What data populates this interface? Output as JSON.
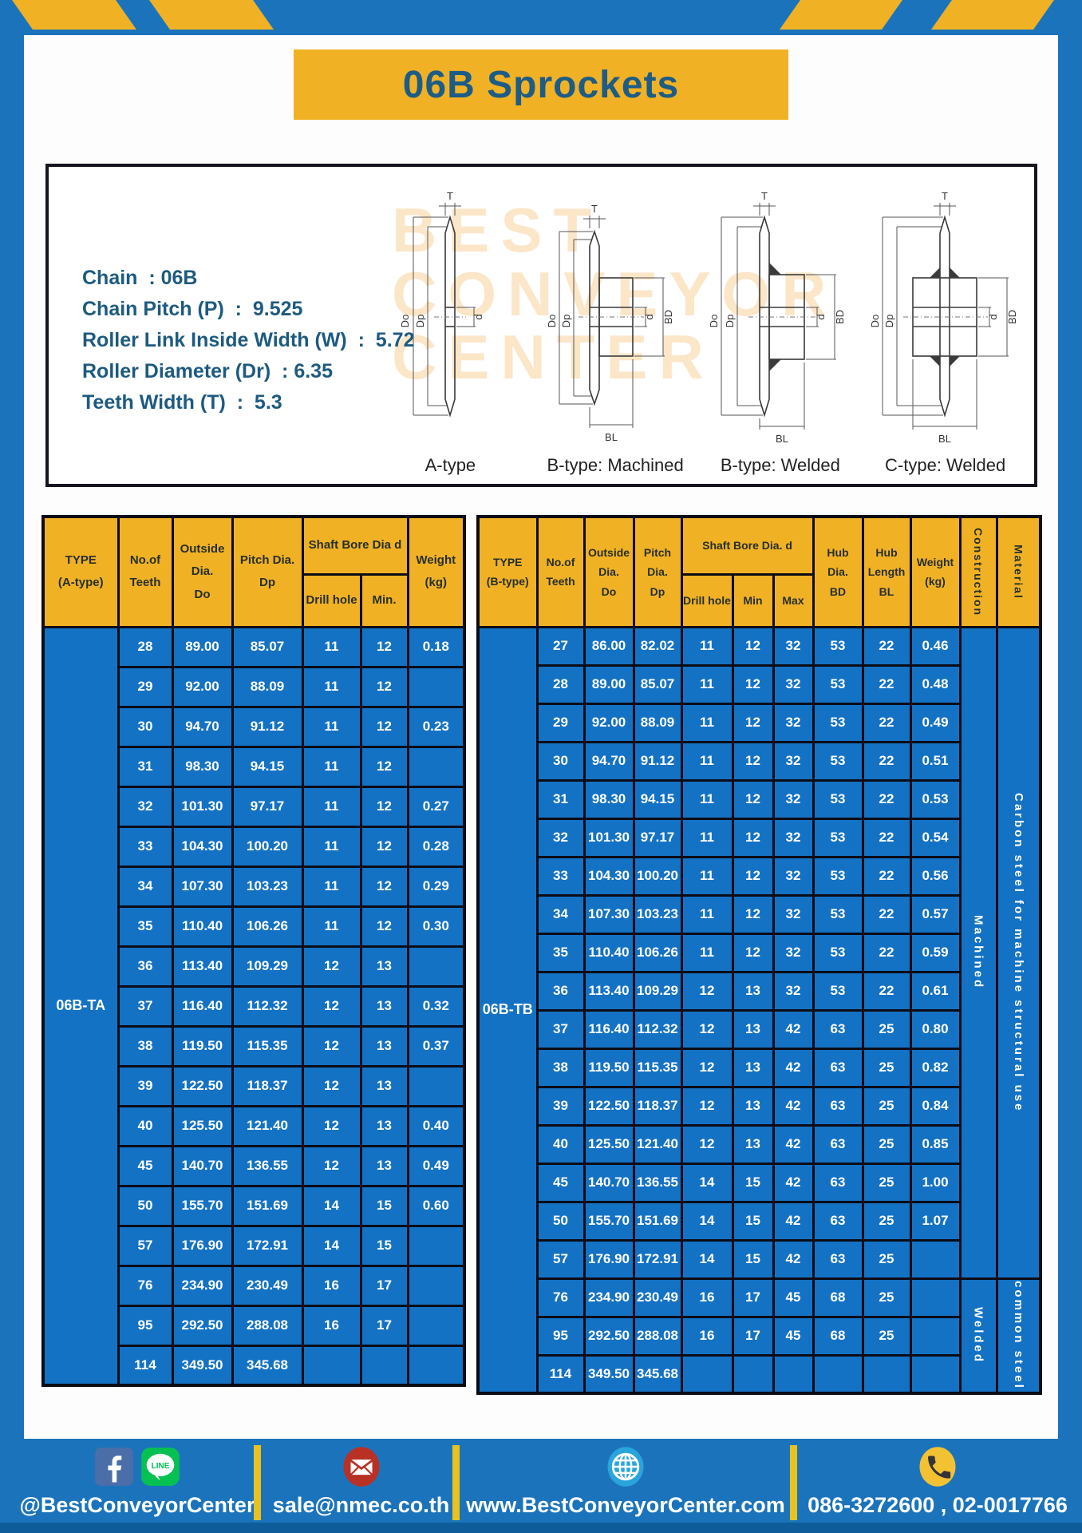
{
  "page": {
    "title": "06B Sprockets"
  },
  "colors": {
    "frame_blue": "#1b74bb",
    "cell_blue": "#1472c4",
    "accent_yellow": "#f0b125",
    "title_text": "#1d5c86",
    "table_border": "#0c0c16"
  },
  "specs": {
    "lines": [
      "Chain  : 06B",
      "Chain Pitch (P)  :  9.525",
      "Roller Link Inside Width (W)  :  5.72",
      "Roller Diameter (Dr)  : 6.35",
      "Teeth Width (T)  :  5.3"
    ]
  },
  "diagram": {
    "captions": [
      "A-type",
      "B-type: Machined",
      "B-type: Welded",
      "C-type: Welded"
    ],
    "dim_labels": {
      "t": "T",
      "do": "Do",
      "dp": "Dp",
      "d": "d",
      "bd": "BD",
      "bl": "BL"
    },
    "watermark": "BEST\nCONVEYOR\nCENTER"
  },
  "table_a": {
    "type_header": "TYPE\n(A-type)",
    "type_value": "06B-TA",
    "col_headers": {
      "teeth": "No.of\nTeeth",
      "outside": "Outside\nDia.\nDo",
      "pitch": "Pitch Dia.\nDp",
      "shaft_bore": "Shaft Bore Dia d",
      "drill": "Drill hole",
      "min": "Min.",
      "weight": "Weight\n(kg)"
    },
    "rows": [
      [
        "28",
        "89.00",
        "85.07",
        "11",
        "12",
        "0.18"
      ],
      [
        "29",
        "92.00",
        "88.09",
        "11",
        "12",
        ""
      ],
      [
        "30",
        "94.70",
        "91.12",
        "11",
        "12",
        "0.23"
      ],
      [
        "31",
        "98.30",
        "94.15",
        "11",
        "12",
        ""
      ],
      [
        "32",
        "101.30",
        "97.17",
        "11",
        "12",
        "0.27"
      ],
      [
        "33",
        "104.30",
        "100.20",
        "11",
        "12",
        "0.28"
      ],
      [
        "34",
        "107.30",
        "103.23",
        "11",
        "12",
        "0.29"
      ],
      [
        "35",
        "110.40",
        "106.26",
        "11",
        "12",
        "0.30"
      ],
      [
        "36",
        "113.40",
        "109.29",
        "12",
        "13",
        ""
      ],
      [
        "37",
        "116.40",
        "112.32",
        "12",
        "13",
        "0.32"
      ],
      [
        "38",
        "119.50",
        "115.35",
        "12",
        "13",
        "0.37"
      ],
      [
        "39",
        "122.50",
        "118.37",
        "12",
        "13",
        ""
      ],
      [
        "40",
        "125.50",
        "121.40",
        "12",
        "13",
        "0.40"
      ],
      [
        "45",
        "140.70",
        "136.55",
        "12",
        "13",
        "0.49"
      ],
      [
        "50",
        "155.70",
        "151.69",
        "14",
        "15",
        "0.60"
      ],
      [
        "57",
        "176.90",
        "172.91",
        "14",
        "15",
        ""
      ],
      [
        "76",
        "234.90",
        "230.49",
        "16",
        "17",
        ""
      ],
      [
        "95",
        "292.50",
        "288.08",
        "16",
        "17",
        ""
      ],
      [
        "114",
        "349.50",
        "345.68",
        "",
        "",
        ""
      ]
    ]
  },
  "table_b": {
    "type_header": "TYPE\n(B-type)",
    "type_value": "06B-TB",
    "col_headers": {
      "teeth": "No.of\nTeeth",
      "outside": "Outside\nDia.\nDo",
      "pitch": "Pitch\nDia.\nDp",
      "shaft_bore": "Shaft Bore Dia. d",
      "drill": "Drill hole",
      "min": "Min",
      "max": "Max",
      "hub_dia": "Hub\nDia.\nBD",
      "hub_len": "Hub\nLength\nBL",
      "weight": "Weight\n(kg)",
      "construction": "Construction",
      "material": "Material"
    },
    "rows": [
      [
        "27",
        "86.00",
        "82.02",
        "11",
        "12",
        "32",
        "53",
        "22",
        "0.46"
      ],
      [
        "28",
        "89.00",
        "85.07",
        "11",
        "12",
        "32",
        "53",
        "22",
        "0.48"
      ],
      [
        "29",
        "92.00",
        "88.09",
        "11",
        "12",
        "32",
        "53",
        "22",
        "0.49"
      ],
      [
        "30",
        "94.70",
        "91.12",
        "11",
        "12",
        "32",
        "53",
        "22",
        "0.51"
      ],
      [
        "31",
        "98.30",
        "94.15",
        "11",
        "12",
        "32",
        "53",
        "22",
        "0.53"
      ],
      [
        "32",
        "101.30",
        "97.17",
        "11",
        "12",
        "32",
        "53",
        "22",
        "0.54"
      ],
      [
        "33",
        "104.30",
        "100.20",
        "11",
        "12",
        "32",
        "53",
        "22",
        "0.56"
      ],
      [
        "34",
        "107.30",
        "103.23",
        "11",
        "12",
        "32",
        "53",
        "22",
        "0.57"
      ],
      [
        "35",
        "110.40",
        "106.26",
        "11",
        "12",
        "32",
        "53",
        "22",
        "0.59"
      ],
      [
        "36",
        "113.40",
        "109.29",
        "12",
        "13",
        "32",
        "53",
        "22",
        "0.61"
      ],
      [
        "37",
        "116.40",
        "112.32",
        "12",
        "13",
        "42",
        "63",
        "25",
        "0.80"
      ],
      [
        "38",
        "119.50",
        "115.35",
        "12",
        "13",
        "42",
        "63",
        "25",
        "0.82"
      ],
      [
        "39",
        "122.50",
        "118.37",
        "12",
        "13",
        "42",
        "63",
        "25",
        "0.84"
      ],
      [
        "40",
        "125.50",
        "121.40",
        "12",
        "13",
        "42",
        "63",
        "25",
        "0.85"
      ],
      [
        "45",
        "140.70",
        "136.55",
        "14",
        "15",
        "42",
        "63",
        "25",
        "1.00"
      ],
      [
        "50",
        "155.70",
        "151.69",
        "14",
        "15",
        "42",
        "63",
        "25",
        "1.07"
      ],
      [
        "57",
        "176.90",
        "172.91",
        "14",
        "15",
        "42",
        "63",
        "25",
        ""
      ],
      [
        "76",
        "234.90",
        "230.49",
        "16",
        "17",
        "45",
        "68",
        "25",
        ""
      ],
      [
        "95",
        "292.50",
        "288.08",
        "16",
        "17",
        "45",
        "68",
        "25",
        ""
      ],
      [
        "114",
        "349.50",
        "345.68",
        "",
        "",
        "",
        "",
        "",
        ""
      ]
    ],
    "construction_groups": [
      {
        "label": "Machined",
        "rows": 17
      },
      {
        "label": "Welded",
        "rows": 3
      }
    ],
    "material_groups": [
      {
        "label": "Carbon steel for machine structural use",
        "rows": 17
      },
      {
        "label": "common steel",
        "rows": 3
      }
    ]
  },
  "footer": {
    "items": [
      {
        "icons": [
          "facebook-icon",
          "line-icon"
        ],
        "text": "@BestConveyorCenter"
      },
      {
        "icons": [
          "email-icon"
        ],
        "text": "sale@nmec.co.th"
      },
      {
        "icons": [
          "globe-icon"
        ],
        "text": "www.BestConveyorCenter.com"
      },
      {
        "icons": [
          "phone-icon"
        ],
        "text": "086-3272600 , 02-0017766"
      }
    ]
  }
}
